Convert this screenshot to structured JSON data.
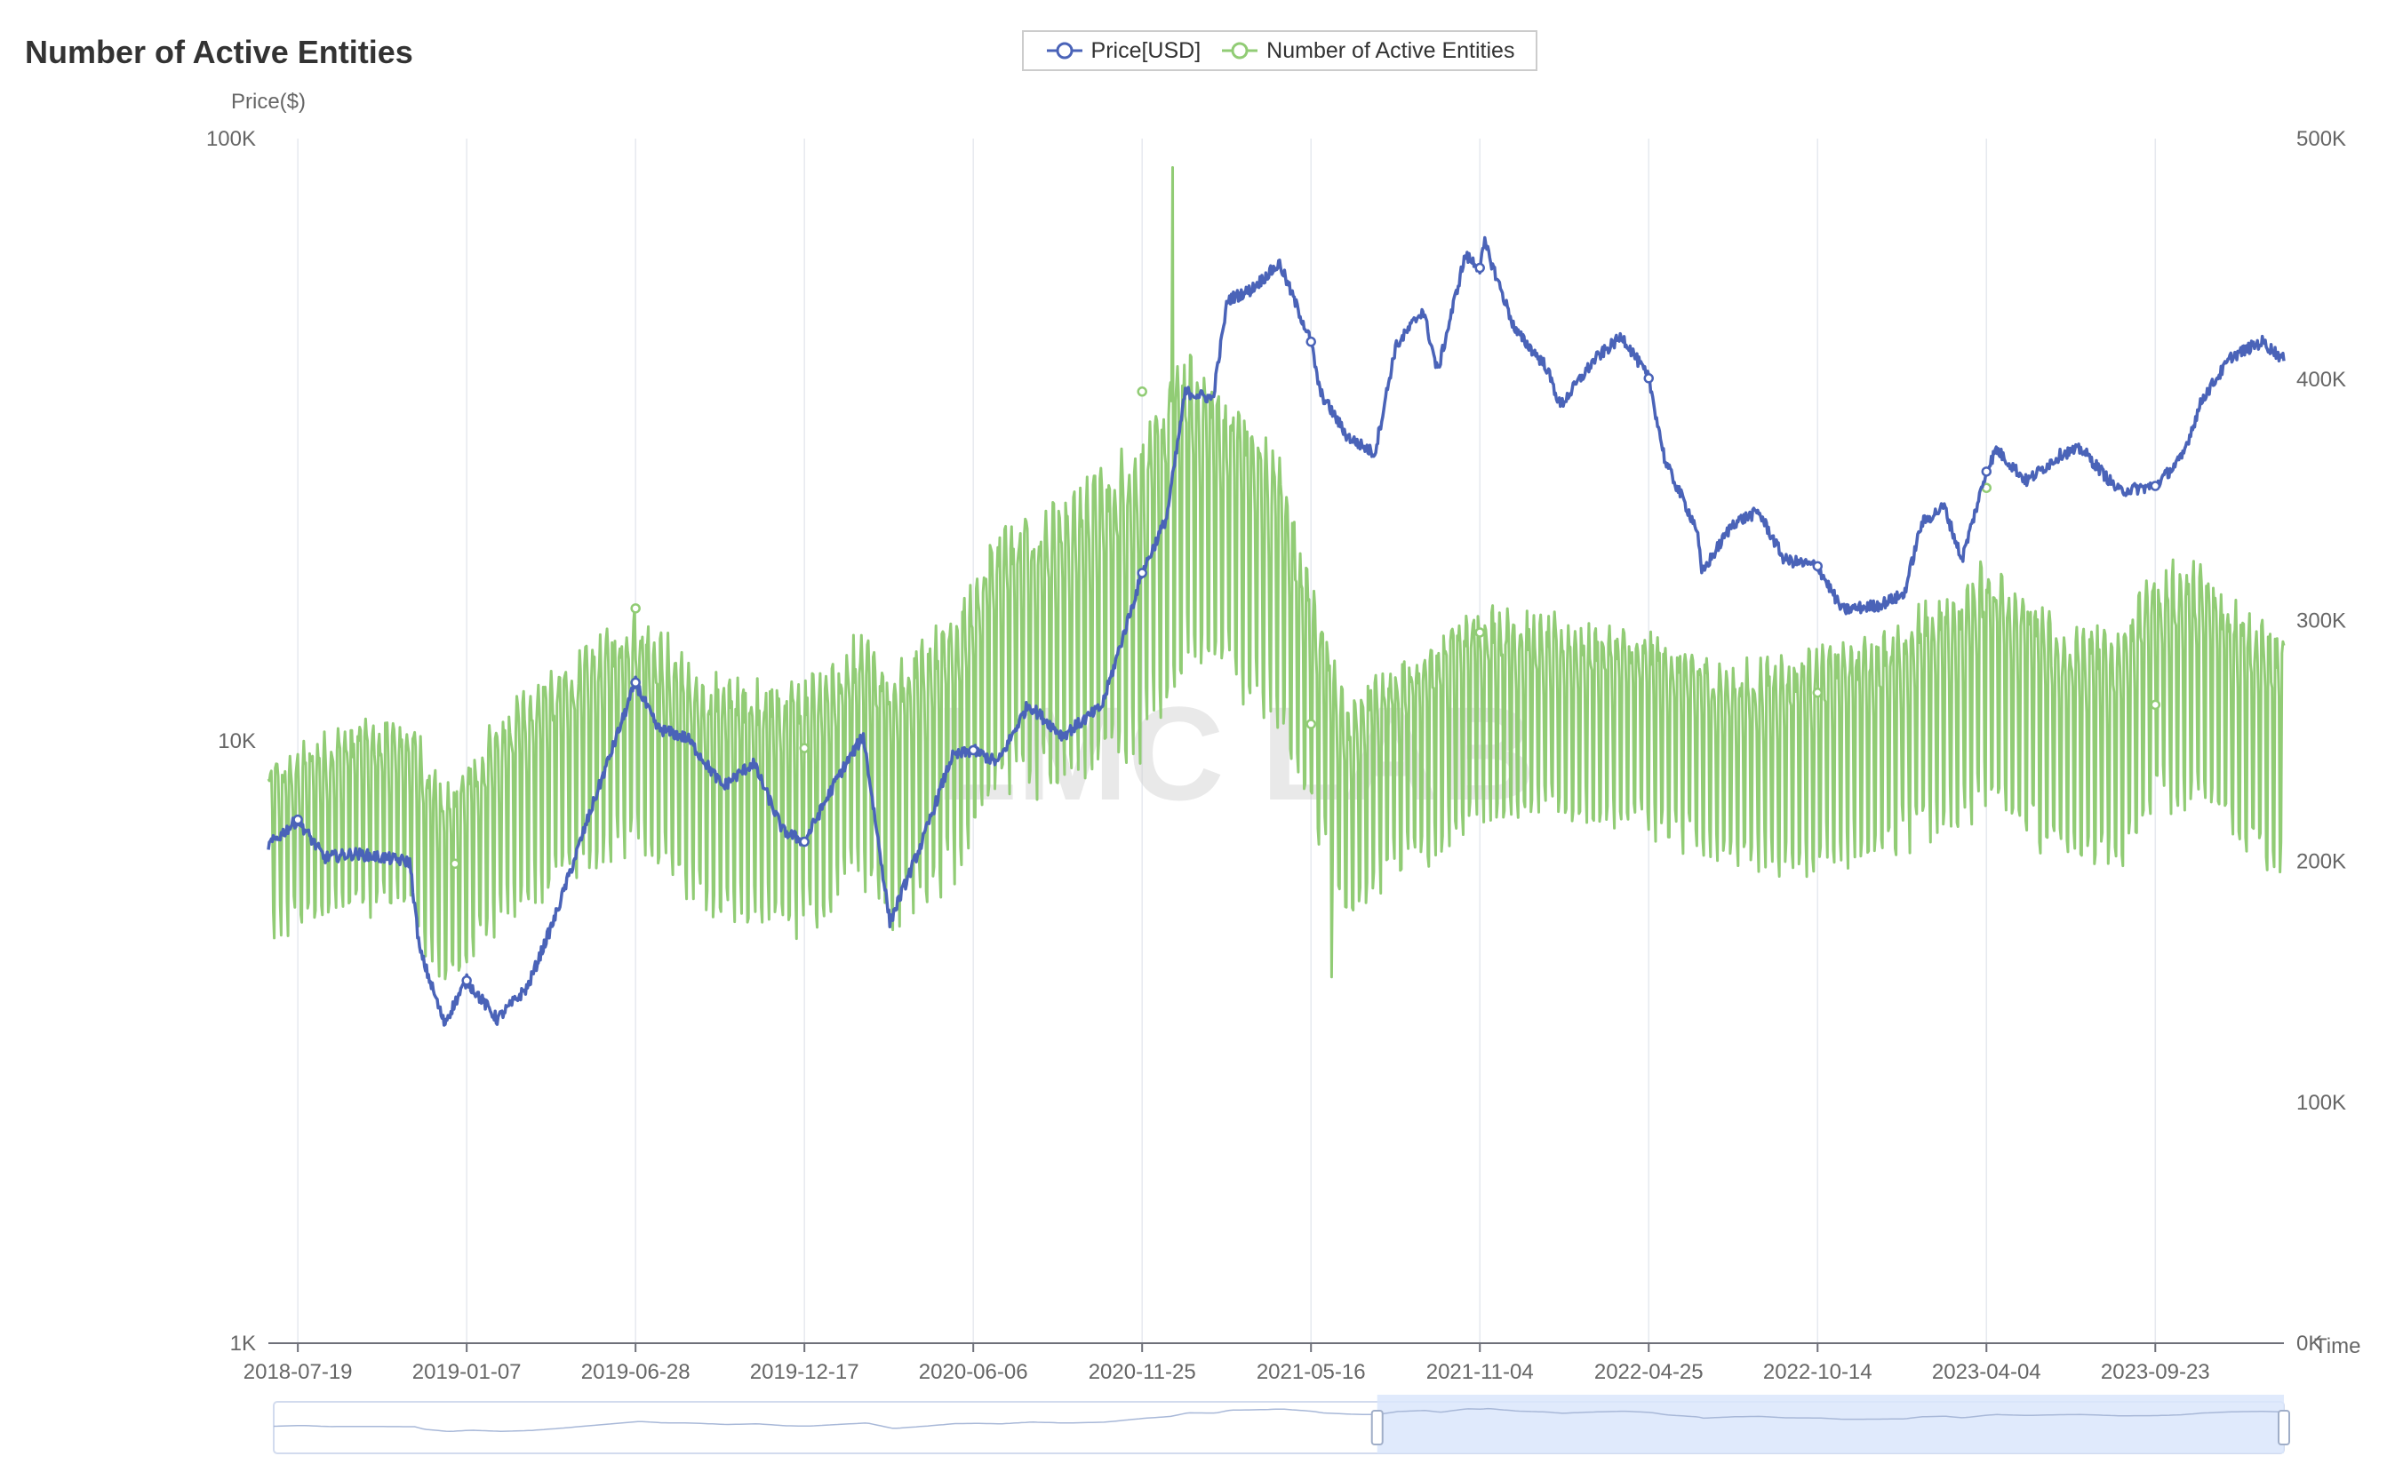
{
  "chart_data": {
    "type": "line",
    "title": "Number of Active Entities",
    "watermark": "LMC LAB",
    "xlabel": "Time",
    "y_left_label": "Price($)",
    "y_left_scale": "log",
    "y_left_range": [
      1000,
      100000
    ],
    "y_left_ticks": [
      "1K",
      "10K",
      "100K"
    ],
    "y_right_range": [
      0,
      500000
    ],
    "y_right_ticks": [
      "0K",
      "100K",
      "200K",
      "300K",
      "400K",
      "500K"
    ],
    "x_range": [
      "2018-06-19",
      "2024-02-01"
    ],
    "x_ticks": [
      "2018-07-19",
      "2019-01-07",
      "2019-06-28",
      "2019-12-17",
      "2020-06-06",
      "2020-11-25",
      "2021-05-16",
      "2021-11-04",
      "2022-04-25",
      "2022-10-14",
      "2023-04-04",
      "2023-09-23"
    ],
    "legend_position": "top-center",
    "grid": {
      "vertical": true,
      "horizontal": false
    },
    "series": [
      {
        "name": "Price[USD]",
        "axis": "left",
        "color": "#4a63b8",
        "points": [
          [
            "2018-06-19",
            6700
          ],
          [
            "2018-07-19",
            7400
          ],
          [
            "2018-08-15",
            6400
          ],
          [
            "2018-09-15",
            6500
          ],
          [
            "2018-10-15",
            6400
          ],
          [
            "2018-11-10",
            6300
          ],
          [
            "2018-11-20",
            4500
          ],
          [
            "2018-12-15",
            3400
          ],
          [
            "2019-01-07",
            4000
          ],
          [
            "2019-02-07",
            3450
          ],
          [
            "2019-03-10",
            3900
          ],
          [
            "2019-04-07",
            5100
          ],
          [
            "2019-05-15",
            7800
          ],
          [
            "2019-06-28",
            12500
          ],
          [
            "2019-07-20",
            10500
          ],
          [
            "2019-08-20",
            10100
          ],
          [
            "2019-09-25",
            8400
          ],
          [
            "2019-10-26",
            9200
          ],
          [
            "2019-11-25",
            7100
          ],
          [
            "2019-12-17",
            6800
          ],
          [
            "2020-01-20",
            8700
          ],
          [
            "2020-02-15",
            10200
          ],
          [
            "2020-03-13",
            5000
          ],
          [
            "2020-04-15",
            6800
          ],
          [
            "2020-05-15",
            9400
          ],
          [
            "2020-06-06",
            9650
          ],
          [
            "2020-07-01",
            9200
          ],
          [
            "2020-08-01",
            11500
          ],
          [
            "2020-09-05",
            10200
          ],
          [
            "2020-10-15",
            11400
          ],
          [
            "2020-11-25",
            19000
          ],
          [
            "2020-12-20",
            23500
          ],
          [
            "2021-01-08",
            38000
          ],
          [
            "2021-02-05",
            37000
          ],
          [
            "2021-02-20",
            54000
          ],
          [
            "2021-03-15",
            56000
          ],
          [
            "2021-04-14",
            62000
          ],
          [
            "2021-05-16",
            46000
          ],
          [
            "2021-05-25",
            38000
          ],
          [
            "2021-06-22",
            32000
          ],
          [
            "2021-07-20",
            30000
          ],
          [
            "2021-08-10",
            45000
          ],
          [
            "2021-09-07",
            52000
          ],
          [
            "2021-09-22",
            41000
          ],
          [
            "2021-10-20",
            64000
          ],
          [
            "2021-11-04",
            61000
          ],
          [
            "2021-11-09",
            67000
          ],
          [
            "2021-12-10",
            48000
          ],
          [
            "2022-01-10",
            42000
          ],
          [
            "2022-01-25",
            36000
          ],
          [
            "2022-03-01",
            43000
          ],
          [
            "2022-03-29",
            47000
          ],
          [
            "2022-04-25",
            40000
          ],
          [
            "2022-05-12",
            29000
          ],
          [
            "2022-06-13",
            22500
          ],
          [
            "2022-06-18",
            19000
          ],
          [
            "2022-07-20",
            23000
          ],
          [
            "2022-08-15",
            24000
          ],
          [
            "2022-09-10",
            20000
          ],
          [
            "2022-10-14",
            19500
          ],
          [
            "2022-11-08",
            16500
          ],
          [
            "2022-12-15",
            16800
          ],
          [
            "2023-01-10",
            17500
          ],
          [
            "2023-01-28",
            23000
          ],
          [
            "2023-02-20",
            24500
          ],
          [
            "2023-03-10",
            20000
          ],
          [
            "2023-04-04",
            28000
          ],
          [
            "2023-04-14",
            30500
          ],
          [
            "2023-05-15",
            27000
          ],
          [
            "2023-06-20",
            30000
          ],
          [
            "2023-07-10",
            30500
          ],
          [
            "2023-08-17",
            26000
          ],
          [
            "2023-09-23",
            26500
          ],
          [
            "2023-10-20",
            29500
          ],
          [
            "2023-11-10",
            37000
          ],
          [
            "2023-12-10",
            43500
          ],
          [
            "2024-01-10",
            46000
          ],
          [
            "2024-02-01",
            43000
          ]
        ]
      },
      {
        "name": "Number of Active Entities",
        "axis": "right",
        "color": "#91cc75",
        "baseline_points": [
          [
            "2018-06-19",
            210000
          ],
          [
            "2018-09-15",
            225000
          ],
          [
            "2018-11-10",
            225000
          ],
          [
            "2018-12-15",
            195000
          ],
          [
            "2019-01-07",
            205000
          ],
          [
            "2019-03-10",
            235000
          ],
          [
            "2019-05-15",
            250000
          ],
          [
            "2019-06-28",
            265000
          ],
          [
            "2019-09-01",
            235000
          ],
          [
            "2019-12-17",
            230000
          ],
          [
            "2020-02-15",
            250000
          ],
          [
            "2020-03-13",
            235000
          ],
          [
            "2020-05-15",
            255000
          ],
          [
            "2020-07-01",
            295000
          ],
          [
            "2020-09-01",
            300000
          ],
          [
            "2020-11-25",
            320000
          ],
          [
            "2021-01-08",
            355000
          ],
          [
            "2021-02-20",
            345000
          ],
          [
            "2021-04-14",
            320000
          ],
          [
            "2021-05-16",
            275000
          ],
          [
            "2021-06-22",
            225000
          ],
          [
            "2021-08-01",
            245000
          ],
          [
            "2021-09-22",
            255000
          ],
          [
            "2021-11-04",
            270000
          ],
          [
            "2022-01-10",
            265000
          ],
          [
            "2022-04-25",
            260000
          ],
          [
            "2022-07-20",
            245000
          ],
          [
            "2022-10-14",
            250000
          ],
          [
            "2022-12-15",
            255000
          ],
          [
            "2023-01-28",
            265000
          ],
          [
            "2023-03-10",
            270000
          ],
          [
            "2023-04-04",
            285000
          ],
          [
            "2023-06-20",
            255000
          ],
          [
            "2023-08-17",
            255000
          ],
          [
            "2023-09-23",
            280000
          ],
          [
            "2023-11-10",
            280000
          ],
          [
            "2024-02-01",
            250000
          ]
        ],
        "weekly_swing": [
          [
            "2018-06-19",
            40000
          ],
          [
            "2019-06-28",
            55000
          ],
          [
            "2020-06-06",
            60000
          ],
          [
            "2021-01-08",
            75000
          ],
          [
            "2021-05-16",
            55000
          ],
          [
            "2022-04-25",
            45000
          ],
          [
            "2023-04-04",
            55000
          ],
          [
            "2024-02-01",
            55000
          ]
        ],
        "annotated_points": [
          [
            "2018-12-26",
            199000
          ],
          [
            "2019-06-28",
            305000
          ],
          [
            "2019-12-17",
            247000
          ],
          [
            "2020-11-25",
            395000
          ],
          [
            "2021-05-16",
            257000
          ],
          [
            "2021-11-04",
            295000
          ],
          [
            "2022-10-14",
            270000
          ],
          [
            "2023-04-04",
            355000
          ],
          [
            "2023-09-23",
            265000
          ]
        ],
        "max": [
          "2020-12-26",
          488000
        ],
        "min": [
          "2021-06-06",
          152000
        ]
      }
    ],
    "data_zoom": {
      "start": "2021-07-20",
      "end": "2024-02-01"
    }
  }
}
